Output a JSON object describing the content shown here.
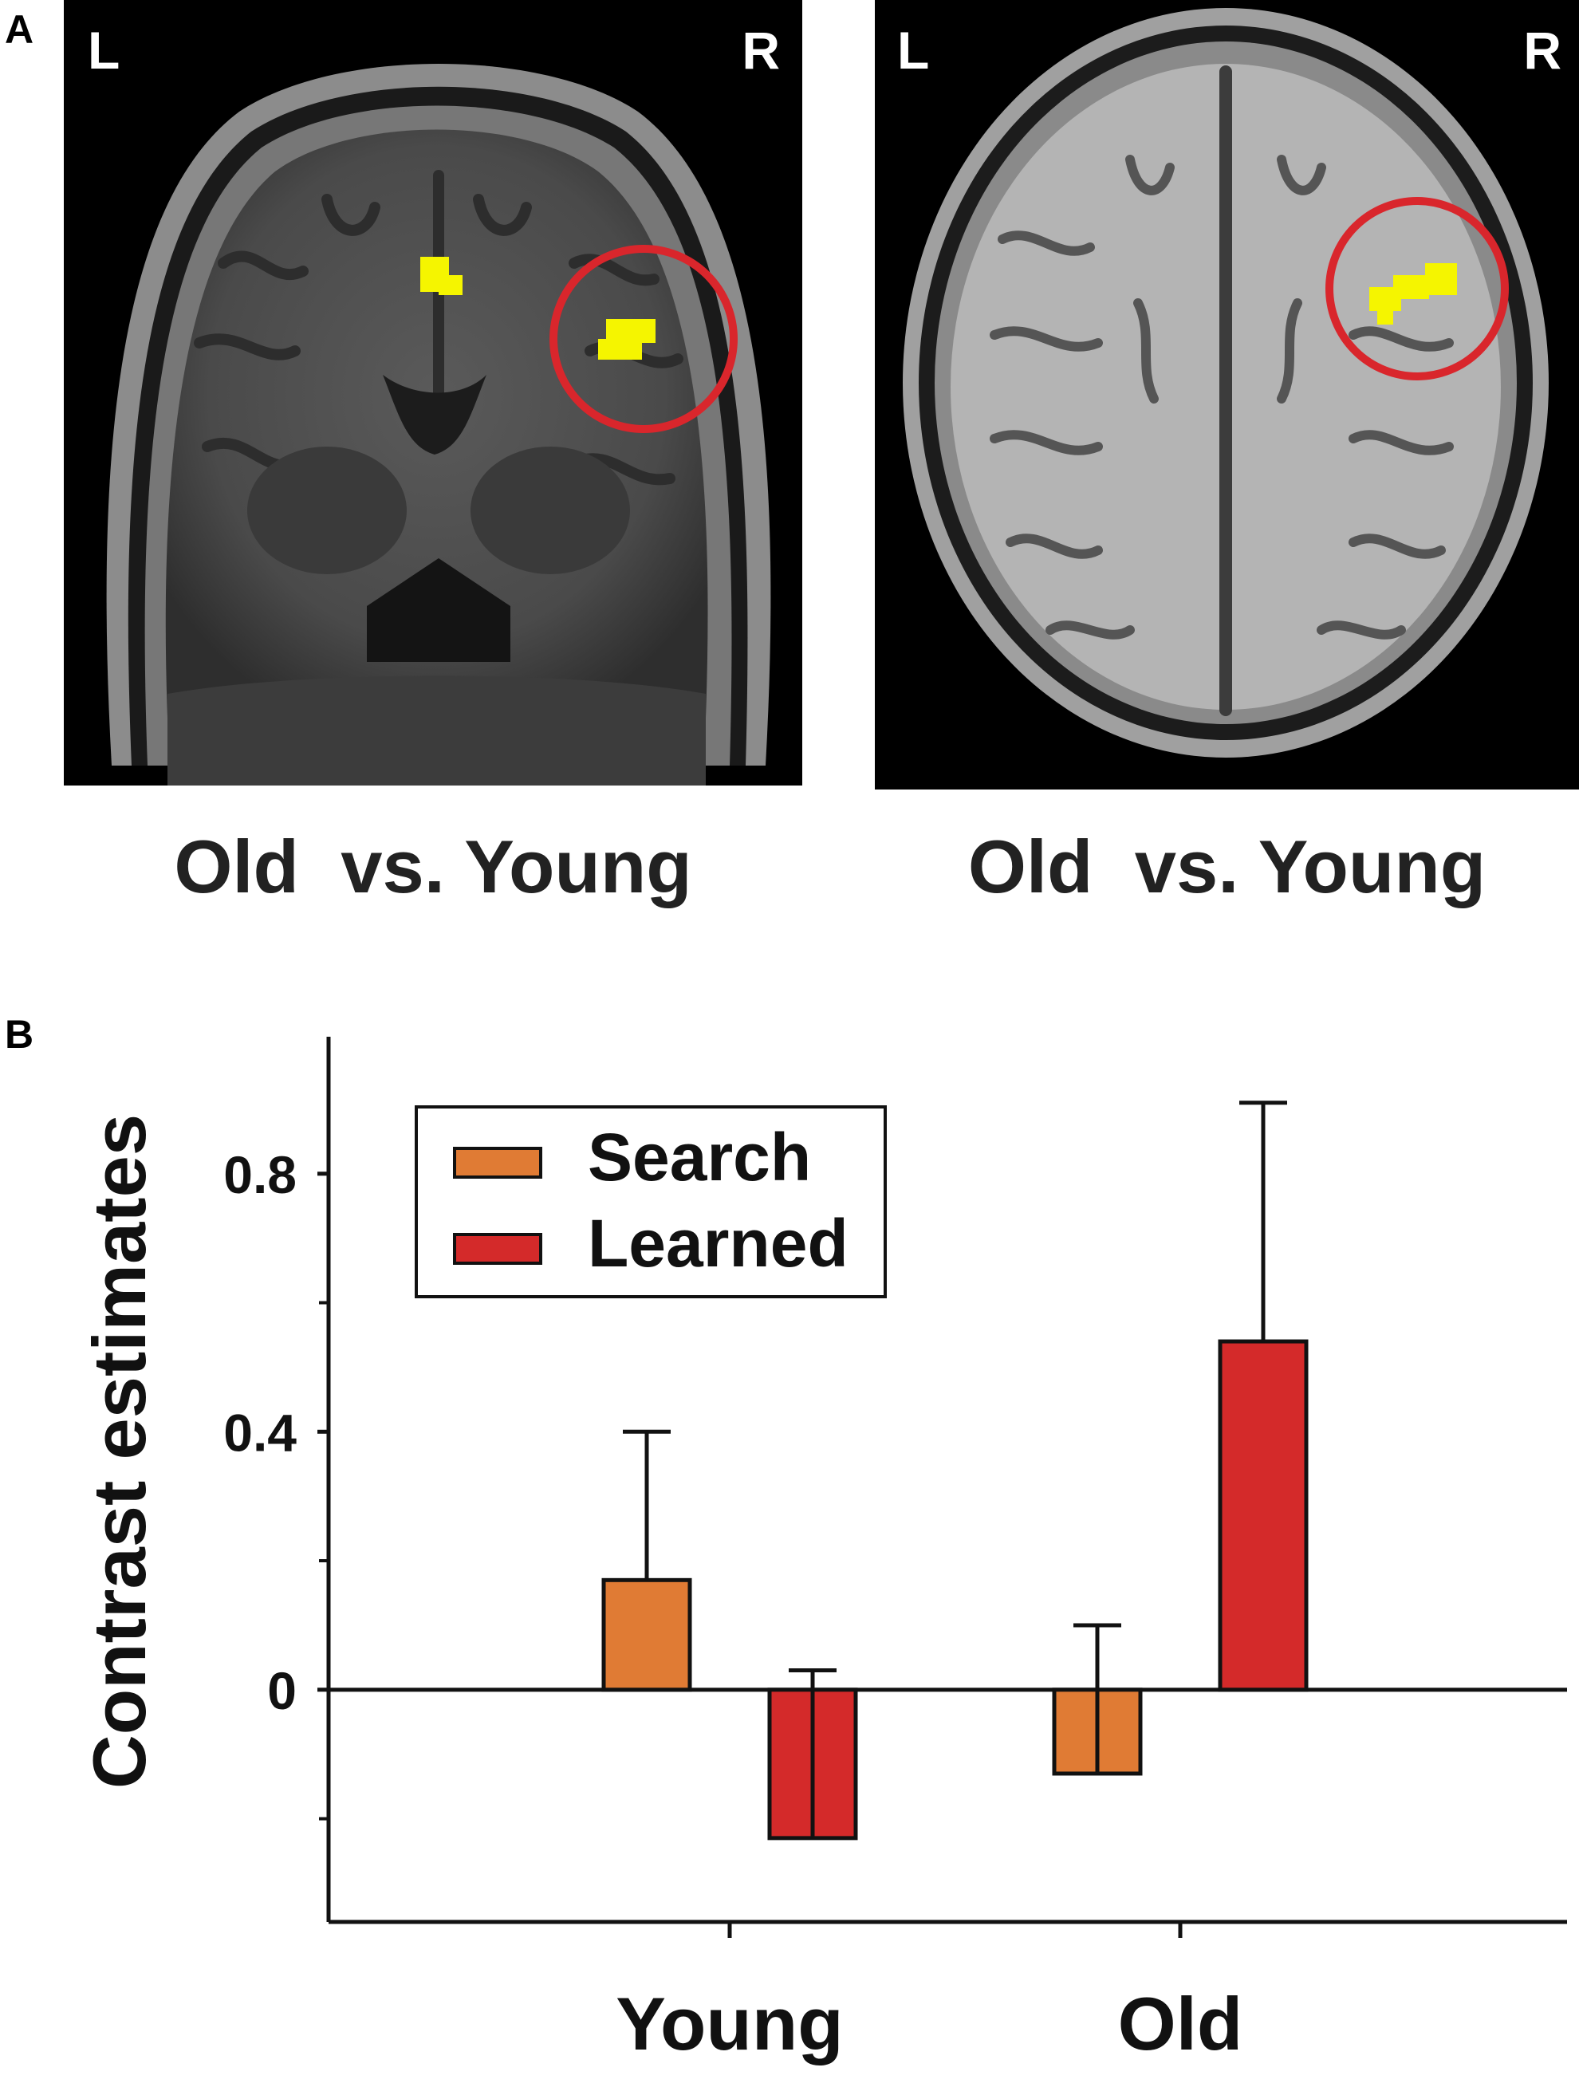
{
  "panels": {
    "a": {
      "letter": "A",
      "left_image": {
        "left_label": "L",
        "right_label": "R",
        "caption": "Old  vs. Young",
        "view": "coronal"
      },
      "right_image": {
        "left_label": "L",
        "right_label": "R",
        "caption": "Old  vs. Young",
        "view": "axial"
      },
      "highlight_color": "#f5f500",
      "circle_color": "#d9262c"
    },
    "b": {
      "letter": "B"
    }
  },
  "chart_data": {
    "type": "bar",
    "categories": [
      "Young",
      "Old"
    ],
    "series": [
      {
        "name": "Search",
        "color": "#e07b34",
        "values": [
          0.17,
          -0.13
        ],
        "error": [
          0.23,
          0.23
        ]
      },
      {
        "name": "Learned",
        "color": "#d42a2a",
        "values": [
          -0.23,
          0.54
        ],
        "error": [
          0.26,
          0.37
        ]
      }
    ],
    "ylabel": "Contrast estimates",
    "xlabel": "",
    "ylim": [
      -0.36,
      1.0
    ],
    "yticks": [
      0,
      0.4,
      0.8
    ],
    "ytick_labels": [
      "0",
      "0.4",
      "0.8"
    ],
    "minor_yticks": [
      -0.2,
      0.2,
      0.6
    ],
    "legend": "top-left",
    "grid": false
  }
}
